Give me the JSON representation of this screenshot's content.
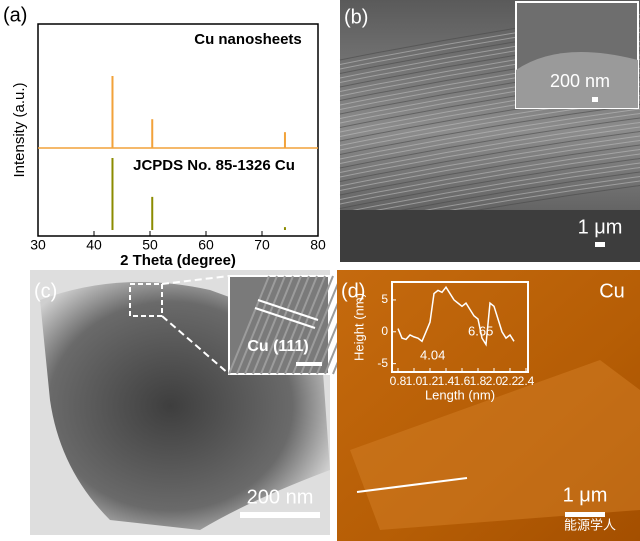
{
  "panels": {
    "a": "(a)",
    "b": "(b)",
    "c": "(c)",
    "d": "(d)"
  },
  "chart_data": [
    {
      "type": "stem",
      "xlabel": "2 Theta (degree)",
      "ylabel": "Intensity (a.u.)",
      "xlim": [
        30,
        80
      ],
      "xticks": [
        30,
        40,
        50,
        60,
        70,
        80
      ],
      "ylim": [
        0,
        100
      ],
      "series": [
        {
          "name": "Cu nanosheets",
          "color": "#f2a23a",
          "x": [
            43.3,
            50.4,
            74.1
          ],
          "values": [
            100,
            40,
            22
          ]
        },
        {
          "name": "JCPDS No. 85-1326 Cu",
          "color": "#8b8b00",
          "x": [
            43.3,
            50.4,
            74.1
          ],
          "values": [
            100,
            46,
            4
          ]
        }
      ]
    },
    {
      "type": "line",
      "xlabel": "Length (nm)",
      "ylabel": "Height (nm)",
      "xlim": [
        0.8,
        2.4
      ],
      "xticks": [
        0.8,
        {
          "value": 1,
          "label": "1.0"
        },
        1.2,
        1.4,
        1.6,
        1.8,
        {
          "value": 2,
          "label": "2.0"
        },
        2.2,
        2.4
      ],
      "ylim": [
        -6,
        7.5
      ],
      "yticks": [
        -5,
        0,
        5
      ],
      "annotations": [
        "4.04",
        "6.65"
      ],
      "x": [
        0.8,
        0.85,
        0.9,
        0.95,
        1.0,
        1.05,
        1.1,
        1.15,
        1.2,
        1.25,
        1.3,
        1.35,
        1.4,
        1.45,
        1.5,
        1.55,
        1.6,
        1.65,
        1.7,
        1.75,
        1.8,
        1.85,
        1.9,
        1.95,
        2.0,
        2.05,
        2.1,
        2.15,
        2.2,
        2.25
      ],
      "values": [
        0.5,
        -1,
        -1.2,
        -0.5,
        -0.8,
        -1,
        -1.5,
        0,
        1.5,
        6,
        6.5,
        6.2,
        7,
        6,
        5,
        4.5,
        4,
        4.5,
        3.5,
        2.5,
        2,
        -1,
        -2,
        4.5,
        4,
        2,
        0,
        -1,
        -0.5,
        -1.5
      ],
      "color": "#000000"
    }
  ],
  "images": {
    "b": {
      "scale": "1 μm",
      "inset_scale": "200 nm"
    },
    "c": {
      "scale": "200 nm",
      "inset_label": "Cu (111)"
    },
    "d": {
      "scale": "1 μm",
      "material": "Cu"
    }
  },
  "watermark": "能源学人"
}
